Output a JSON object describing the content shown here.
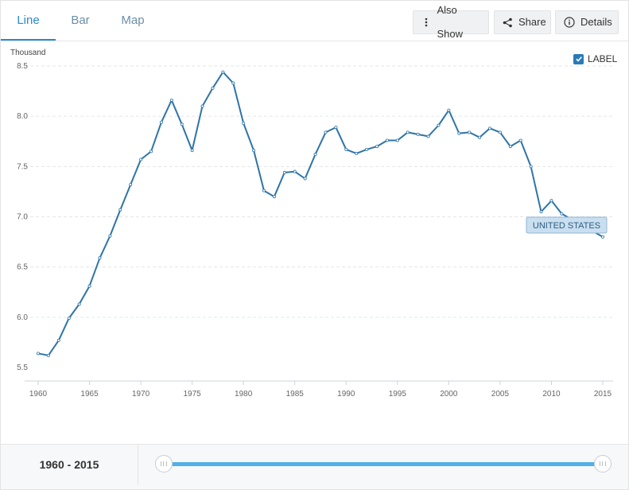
{
  "tabs": [
    {
      "label": "Line",
      "active": true
    },
    {
      "label": "Bar",
      "active": false
    },
    {
      "label": "Map",
      "active": false
    }
  ],
  "toolbar": {
    "also_show": "Also Show",
    "share": "Share",
    "details": "Details"
  },
  "label_toggle": {
    "text": "LABEL",
    "checked": true
  },
  "range": {
    "start": "1960",
    "separator": " - ",
    "end": "2015"
  },
  "chart_data": {
    "type": "line",
    "title": "",
    "unit": "Thousand",
    "xlabel": "",
    "ylabel": "Thousand",
    "xlim": [
      1960,
      2015
    ],
    "ylim": [
      5.5,
      8.5
    ],
    "y_ticks": [
      "5.5",
      "6.0",
      "6.5",
      "7.0",
      "7.5",
      "8.0",
      "8.5"
    ],
    "x_ticks": [
      "1960",
      "1965",
      "1970",
      "1975",
      "1980",
      "1985",
      "1990",
      "1995",
      "2000",
      "2005",
      "2010",
      "2015"
    ],
    "grid": "horizontal dashed",
    "line_color": "#2e74a8",
    "series_label": "UNITED STATES",
    "series": [
      {
        "name": "UNITED STATES",
        "x": [
          1960,
          1961,
          1962,
          1963,
          1964,
          1965,
          1966,
          1967,
          1968,
          1969,
          1970,
          1971,
          1972,
          1973,
          1974,
          1975,
          1976,
          1977,
          1978,
          1979,
          1980,
          1981,
          1982,
          1983,
          1984,
          1985,
          1986,
          1987,
          1988,
          1989,
          1990,
          1991,
          1992,
          1993,
          1994,
          1995,
          1996,
          1997,
          1998,
          1999,
          2000,
          2001,
          2002,
          2003,
          2004,
          2005,
          2006,
          2007,
          2008,
          2009,
          2010,
          2011,
          2015
        ],
        "values": [
          5.64,
          5.62,
          5.77,
          5.99,
          6.13,
          6.31,
          6.59,
          6.81,
          7.07,
          7.32,
          7.57,
          7.65,
          7.94,
          8.16,
          7.92,
          7.66,
          8.1,
          8.28,
          8.44,
          8.33,
          7.93,
          7.66,
          7.26,
          7.2,
          7.44,
          7.45,
          7.38,
          7.62,
          7.84,
          7.89,
          7.67,
          7.63,
          7.67,
          7.7,
          7.76,
          7.76,
          7.84,
          7.82,
          7.8,
          7.91,
          8.06,
          7.83,
          7.84,
          7.79,
          7.88,
          7.84,
          7.7,
          7.76,
          7.5,
          7.05,
          7.16,
          7.03,
          6.8
        ]
      }
    ]
  }
}
